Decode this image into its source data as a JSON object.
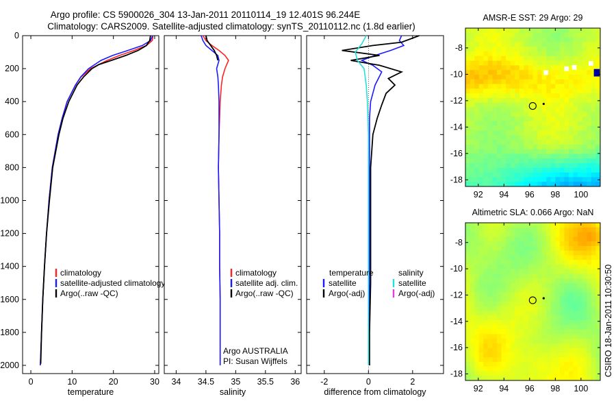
{
  "header": {
    "line1": "Argo profile: CS 5900026_304 13-Jan-2011 20110114_19 12.401S 96.244E",
    "line2": "Climatology: CARS2009. Satellite-adjusted climatology: synTS_20110112.nc (1.8d earlier)"
  },
  "footer": {
    "stamp": "CSIRO 18-Jan-2011 10:30:50"
  },
  "colors": {
    "climatology": "#ff2020",
    "satellite": "#1a1aff",
    "argo": "#000000",
    "sat_salinity": "#22e0e0",
    "argo_adj_salinity": "#e040e0"
  },
  "chart_data": [
    {
      "type": "line",
      "name": "temperature-profile",
      "xlabel": "temperature",
      "ylabel": "",
      "xlim": [
        -2,
        31
      ],
      "ylim": [
        0,
        2050
      ],
      "y_reversed": true,
      "xticks": [
        0,
        10,
        20,
        30
      ],
      "yticks": [
        0,
        200,
        400,
        600,
        800,
        1000,
        1200,
        1400,
        1600,
        1800,
        2000
      ],
      "legend": [
        "climatology",
        "satellite-adjusted climatology",
        "Argo(..raw -QC)"
      ],
      "series": [
        {
          "name": "climatology",
          "color": "#ff2020",
          "depth": [
            0,
            30,
            60,
            90,
            120,
            150,
            200,
            250,
            300,
            400,
            500,
            600,
            800,
            1000,
            1200,
            1400,
            1600,
            1800,
            2000
          ],
          "values": [
            29.6,
            29.4,
            28.0,
            25.0,
            21.5,
            18.5,
            14.5,
            12.2,
            10.8,
            8.8,
            7.6,
            6.6,
            5.2,
            4.4,
            3.8,
            3.3,
            2.9,
            2.6,
            2.3
          ]
        },
        {
          "name": "satellite-adjusted climatology",
          "color": "#1a1aff",
          "depth": [
            0,
            30,
            60,
            90,
            120,
            150,
            200,
            250,
            300,
            400,
            500,
            600,
            800,
            1000,
            1200,
            1400,
            1600,
            1800,
            2000
          ],
          "values": [
            29.5,
            29.0,
            27.0,
            23.5,
            19.8,
            17.0,
            14.0,
            12.1,
            10.8,
            8.8,
            7.6,
            6.6,
            5.2,
            4.4,
            3.8,
            3.3,
            2.9,
            2.6,
            2.3
          ]
        },
        {
          "name": "Argo(..raw -QC)",
          "color": "#000000",
          "depth": [
            0,
            30,
            60,
            90,
            120,
            150,
            175,
            200,
            250,
            300,
            400,
            500,
            600,
            800,
            1000,
            1200,
            1400,
            1600,
            1800,
            1990
          ],
          "values": [
            29.0,
            28.8,
            28.0,
            26.0,
            23.0,
            19.5,
            16.5,
            14.8,
            12.8,
            11.2,
            9.2,
            7.8,
            6.8,
            5.3,
            4.5,
            3.8,
            3.3,
            2.9,
            2.6,
            2.4
          ]
        }
      ],
      "annotations": []
    },
    {
      "type": "line",
      "name": "salinity-profile",
      "xlabel": "salinity",
      "xlim": [
        33.8,
        36.1
      ],
      "ylim": [
        0,
        2050
      ],
      "y_reversed": true,
      "xticks": [
        34,
        34.5,
        35,
        35.5,
        36
      ],
      "legend": [
        "climatology",
        "satellite adj. clim.",
        "Argo(..raw -QC)"
      ],
      "series": [
        {
          "name": "climatology",
          "color": "#ff2020",
          "depth": [
            0,
            30,
            60,
            90,
            120,
            150,
            200,
            250,
            300,
            400,
            500,
            600,
            800,
            1000,
            1200,
            1400,
            1600,
            1800,
            2000
          ],
          "values": [
            34.45,
            34.5,
            34.6,
            34.72,
            34.82,
            34.88,
            34.82,
            34.78,
            34.76,
            34.74,
            34.73,
            34.72,
            34.71,
            34.72,
            34.73,
            34.73,
            34.74,
            34.74,
            34.74
          ]
        },
        {
          "name": "satellite adj. clim.",
          "color": "#1a1aff",
          "depth": [
            0,
            30,
            60,
            90,
            120,
            150,
            200,
            250,
            300,
            400,
            500,
            600,
            800,
            1000,
            1200,
            1400,
            1600,
            1800,
            2000
          ],
          "values": [
            34.42,
            34.45,
            34.5,
            34.6,
            34.7,
            34.72,
            34.68,
            34.7,
            34.71,
            34.72,
            34.72,
            34.72,
            34.71,
            34.72,
            34.73,
            34.73,
            34.74,
            34.74,
            34.74
          ]
        },
        {
          "name": "Argo(..raw -QC)",
          "color": "#000000",
          "depth": [
            0,
            30,
            60,
            90,
            120,
            150
          ],
          "values": [
            34.5,
            34.52,
            34.58,
            34.64,
            34.68,
            34.7
          ]
        }
      ],
      "annotations": [
        "Argo AUSTRALIA",
        "PI: Susan Wijffels"
      ]
    },
    {
      "type": "line",
      "name": "difference-profile",
      "xlabel": "difference from climatology",
      "xlim": [
        -2.8,
        3.4
      ],
      "ylim": [
        0,
        2050
      ],
      "y_reversed": true,
      "xticks": [
        -2,
        0,
        2
      ],
      "legend_left": [
        "temperature",
        "satellite",
        "Argo(-adj)"
      ],
      "legend_right": [
        "salinity",
        "satellite",
        "Argo(-adj)"
      ],
      "series": [
        {
          "name": "temperature satellite",
          "color": "#1a1aff",
          "depth": [
            0,
            30,
            60,
            90,
            120,
            150,
            180,
            220,
            300,
            400,
            500,
            700,
            1000,
            1500,
            2000
          ],
          "values": [
            1.5,
            1.4,
            1.6,
            1.0,
            0.3,
            -0.3,
            0.2,
            0.6,
            0.3,
            0.1,
            0.05,
            0.05,
            0.05,
            0.05,
            0.0
          ]
        },
        {
          "name": "temperature Argo(-adj)",
          "color": "#000000",
          "depth": [
            0,
            40,
            60,
            90,
            120,
            150,
            180,
            220,
            260,
            300,
            350,
            420,
            500,
            600,
            800,
            1000,
            1200,
            1500,
            1800,
            2000
          ],
          "values": [
            2.3,
            1.5,
            0.2,
            -1.2,
            0.5,
            -0.8,
            0.5,
            1.5,
            0.9,
            1.2,
            0.8,
            0.6,
            0.4,
            0.2,
            0.1,
            0.1,
            0.1,
            0.1,
            0.05,
            0.05
          ]
        },
        {
          "name": "salinity satellite",
          "color": "#22e0e0",
          "depth": [
            0,
            50,
            100,
            150,
            200,
            300,
            400,
            600,
            1000,
            1500,
            2000
          ],
          "values": [
            -0.1,
            -0.3,
            -0.6,
            -0.5,
            -0.2,
            -0.1,
            -0.05,
            0.0,
            0.0,
            0.0,
            0.0
          ]
        }
      ]
    },
    {
      "type": "heatmap",
      "name": "sst-map",
      "title": "AMSR-E SST: 29 Argo: 29",
      "xlim": [
        91,
        101.5
      ],
      "ylim": [
        -18.5,
        -6.5
      ],
      "xticks": [
        92,
        94,
        96,
        98,
        100
      ],
      "yticks": [
        -8,
        -10,
        -12,
        -14,
        -16,
        -18
      ],
      "argo_lon": 96.24,
      "argo_lat": -12.4
    },
    {
      "type": "heatmap",
      "name": "sla-map",
      "title": "Altimetric SLA: 0.066 Argo: NaN",
      "xlim": [
        91,
        101.5
      ],
      "ylim": [
        -18.5,
        -6.5
      ],
      "xticks": [
        92,
        94,
        96,
        98,
        100
      ],
      "yticks": [
        -8,
        -10,
        -12,
        -14,
        -16,
        -18
      ],
      "argo_lon": 96.24,
      "argo_lat": -12.4
    }
  ]
}
